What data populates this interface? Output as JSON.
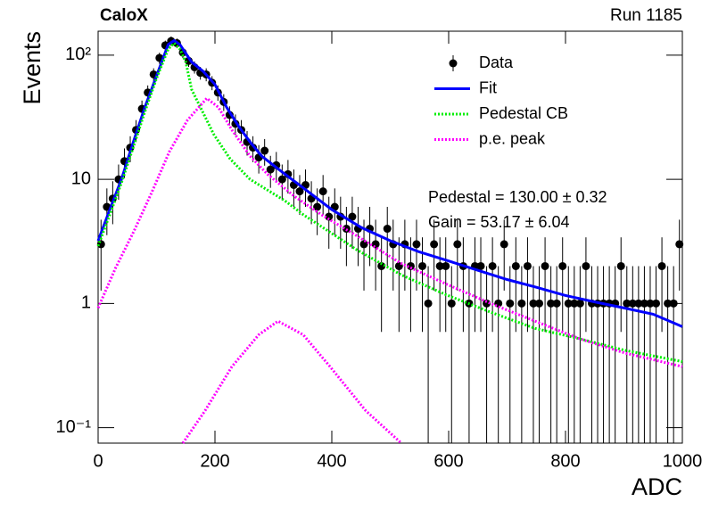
{
  "chart_data": {
    "type": "errorbar",
    "title": "CaloX",
    "run_label": "Run 1185",
    "xlabel": "ADC",
    "ylabel": "Events",
    "annotations": [
      "Pedestal = 130.00 ± 0.32",
      "Gain = 53.17 ± 6.04"
    ],
    "xlim": [
      0,
      1000
    ],
    "xticks": [
      0,
      200,
      400,
      600,
      800,
      1000
    ],
    "ylim": [
      0.075,
      156
    ],
    "ylog": true,
    "yticks": [
      {
        "value": 0.1,
        "label": "10⁻¹"
      },
      1,
      10,
      {
        "value": 100,
        "label": "10²"
      }
    ],
    "series": [
      {
        "name": "Data",
        "type": "errorbar",
        "color": "#000000",
        "x": [
          5,
          15,
          25,
          35,
          45,
          55,
          65,
          75,
          85,
          95,
          105,
          115,
          125,
          135,
          145,
          155,
          165,
          175,
          185,
          195,
          205,
          215,
          225,
          235,
          245,
          255,
          265,
          275,
          285,
          295,
          305,
          315,
          325,
          335,
          345,
          355,
          365,
          375,
          385,
          395,
          405,
          415,
          425,
          435,
          445,
          455,
          465,
          475,
          485,
          495,
          505,
          515,
          525,
          535,
          545,
          555,
          565,
          575,
          585,
          595,
          605,
          615,
          625,
          635,
          645,
          655,
          665,
          675,
          685,
          695,
          705,
          715,
          725,
          735,
          745,
          755,
          765,
          775,
          785,
          795,
          805,
          815,
          825,
          835,
          845,
          855,
          865,
          875,
          885,
          895,
          905,
          915,
          925,
          935,
          945,
          955,
          965,
          975,
          985,
          995
        ],
        "values": [
          3,
          6,
          7,
          10,
          14,
          18,
          25,
          37,
          50,
          70,
          95,
          120,
          130,
          125,
          105,
          90,
          80,
          72,
          70,
          60,
          50,
          42,
          33,
          28,
          25,
          20,
          18,
          15,
          17,
          12,
          13,
          10,
          11,
          9,
          8,
          9,
          7,
          6,
          8,
          5,
          6,
          5,
          4,
          5,
          4,
          3,
          4,
          3,
          2,
          4,
          3,
          2,
          3,
          2,
          3,
          2,
          1,
          3,
          2,
          2,
          1,
          3,
          2,
          1,
          2,
          2,
          1,
          2,
          1,
          3,
          1,
          2,
          1,
          2,
          1,
          1,
          2,
          1,
          1,
          2,
          1,
          1,
          1,
          2,
          1,
          1,
          1,
          1,
          1,
          2,
          1,
          1,
          1,
          1,
          1,
          1,
          2,
          1,
          1,
          3
        ],
        "errors": [
          1.73,
          2.45,
          2.65,
          3.16,
          3.74,
          4.24,
          5,
          6.08,
          7.07,
          8.37,
          9.75,
          10.95,
          11.4,
          11.18,
          10.25,
          9.49,
          8.94,
          8.49,
          8.37,
          7.75,
          7.07,
          6.48,
          5.74,
          5.29,
          5,
          4.47,
          4.24,
          3.87,
          4.12,
          3.46,
          3.61,
          3.16,
          3.32,
          3,
          2.83,
          3,
          2.65,
          2.45,
          2.83,
          2.24,
          2.45,
          2.24,
          2,
          2.24,
          2,
          1.73,
          2,
          1.73,
          1.41,
          2,
          1.73,
          1.41,
          1.73,
          1.41,
          1.73,
          1.41,
          1,
          1.73,
          1.41,
          1.41,
          1,
          1.73,
          1.41,
          1,
          1.41,
          1.41,
          1,
          1.41,
          1,
          1.73,
          1,
          1.41,
          1,
          1.41,
          1,
          1,
          1.41,
          1,
          1,
          1.41,
          1,
          1,
          1,
          1.41,
          1,
          1,
          1,
          1,
          1,
          1.41,
          1,
          1,
          1,
          1,
          1,
          1,
          1.41,
          1,
          1,
          1.73
        ]
      },
      {
        "name": "Fit",
        "type": "line",
        "color": "#0000ff",
        "style": "solid",
        "x": [
          0,
          20,
          40,
          60,
          80,
          100,
          120,
          130,
          140,
          160,
          180,
          200,
          220,
          240,
          260,
          280,
          300,
          320,
          350,
          400,
          450,
          500,
          550,
          600,
          650,
          700,
          750,
          800,
          850,
          900,
          950,
          1000
        ],
        "values": [
          3.2,
          5.7,
          10,
          19.8,
          38,
          68,
          122,
          131,
          122,
          88,
          74,
          58,
          38,
          27,
          20,
          15.4,
          13,
          11,
          8.6,
          5.7,
          4.1,
          3.2,
          2.6,
          2.2,
          1.85,
          1.56,
          1.35,
          1.16,
          1.03,
          0.92,
          0.82,
          0.65
        ]
      },
      {
        "name": "Pedestal CB",
        "type": "line",
        "color": "#00ee00",
        "style": "dotted",
        "x": [
          0,
          20,
          40,
          60,
          80,
          100,
          120,
          130,
          140,
          150,
          160,
          198,
          226,
          260,
          320,
          351,
          443,
          519,
          595,
          672,
          748,
          824,
          901,
          1000
        ],
        "values": [
          2.9,
          5.2,
          9.4,
          18,
          35,
          65,
          112,
          125,
          112,
          88,
          53,
          23,
          14.6,
          10,
          6.7,
          5.2,
          2.7,
          1.7,
          1.18,
          0.85,
          0.63,
          0.52,
          0.42,
          0.34
        ]
      },
      {
        "name": "p.e. peak",
        "type": "line",
        "color": "#ff00ff",
        "style": "dotted",
        "x": [
          0,
          30,
          61,
          92,
          122,
          153,
          186,
          206,
          229,
          260,
          290,
          336,
          382,
          443,
          519,
          595,
          672,
          748,
          824,
          901,
          1000,
          null,
          145,
          183,
          229,
          275,
          308,
          351,
          397,
          458,
          519
        ],
        "values": [
          0.92,
          1.94,
          3.8,
          7.9,
          16.7,
          30,
          45,
          38,
          25,
          15.4,
          11,
          7.3,
          5.2,
          3.5,
          2.1,
          1.44,
          1,
          0.72,
          0.52,
          0.4,
          0.31,
          null,
          0.075,
          0.137,
          0.31,
          0.56,
          0.72,
          0.56,
          0.31,
          0.137,
          0.075
        ]
      }
    ]
  }
}
